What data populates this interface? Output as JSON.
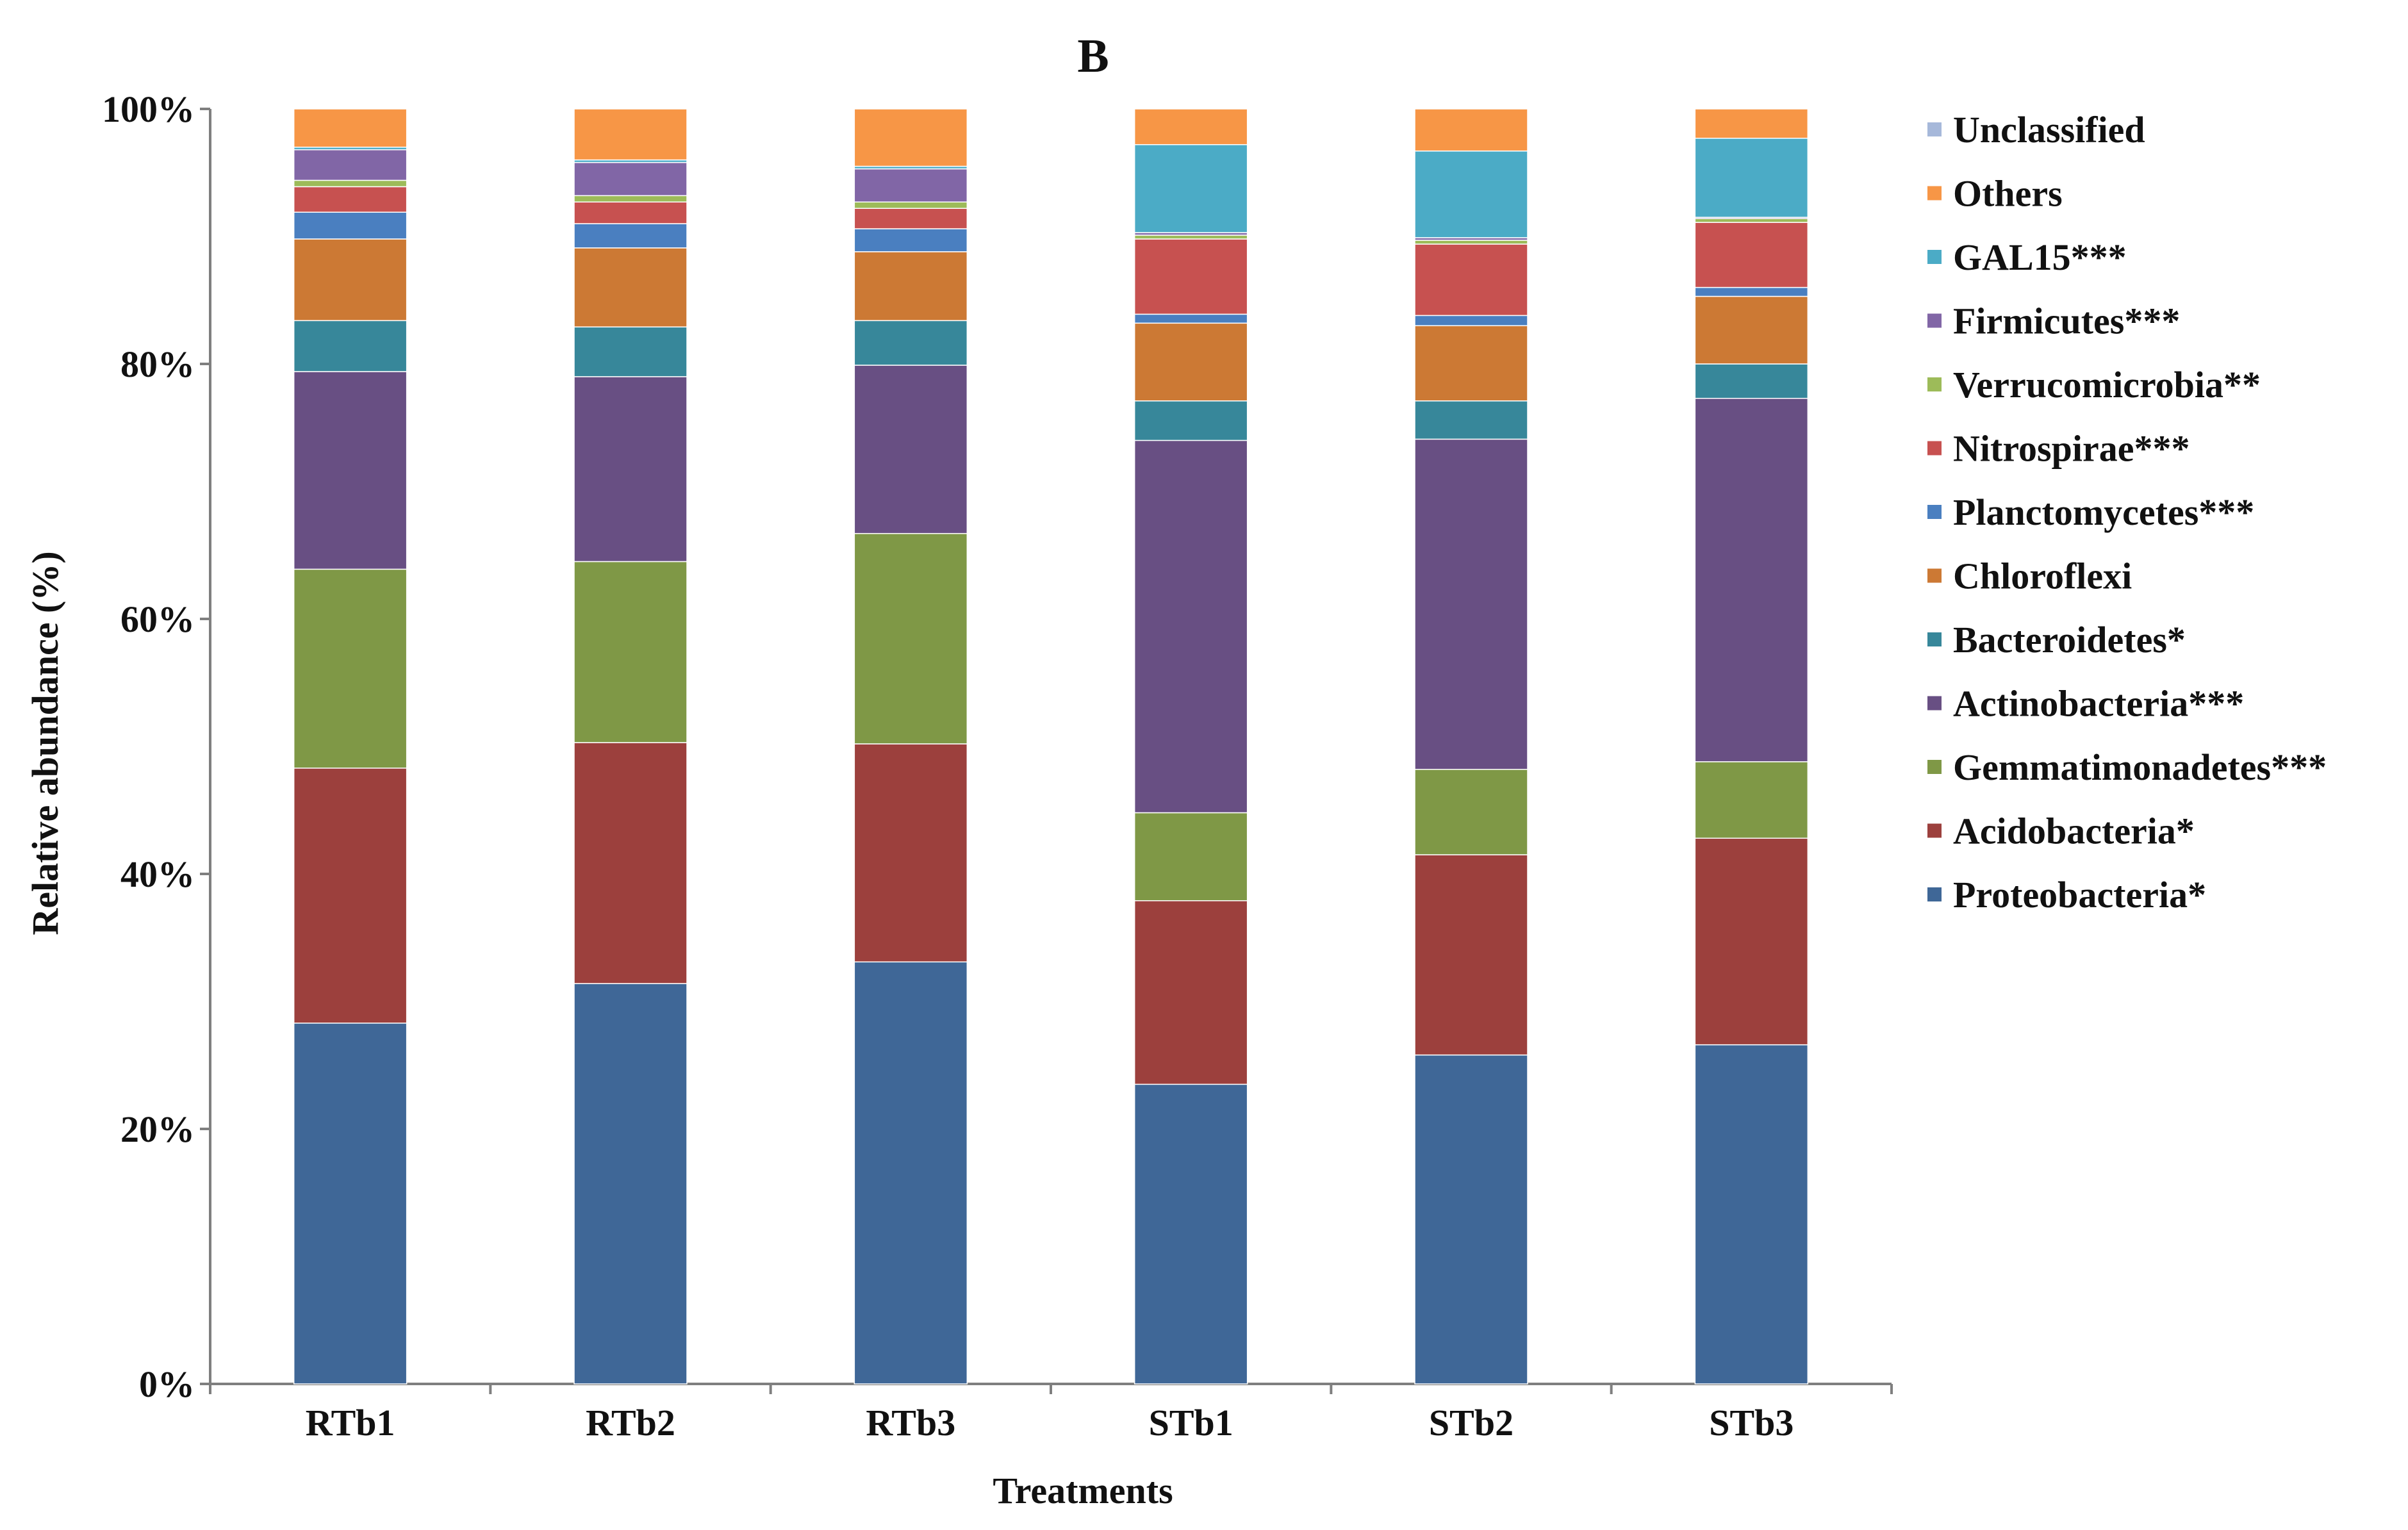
{
  "chart_data": {
    "type": "stacked-bar-percent",
    "title": "B",
    "xlabel": "Treatments",
    "ylabel": "Relative abundance (%)",
    "ylim": [
      0,
      100
    ],
    "yticks": [
      "0%",
      "20%",
      "40%",
      "60%",
      "80%",
      "100%"
    ],
    "categories": [
      "RTb1",
      "RTb2",
      "RTb3",
      "STb1",
      "STb2",
      "STb3"
    ],
    "legend_position": "right",
    "series": [
      {
        "name": "Proteobacteria*",
        "color": "#3f6797",
        "values": [
          28.3,
          31.4,
          33.1,
          23.5,
          25.8,
          26.6
        ]
      },
      {
        "name": "Acidobacteria*",
        "color": "#9c403d",
        "values": [
          20.0,
          18.9,
          17.1,
          14.4,
          15.7,
          16.2
        ]
      },
      {
        "name": "Gemmatimonadetes***",
        "color": "#7f9846",
        "values": [
          15.6,
          14.2,
          16.5,
          6.9,
          6.7,
          6.0
        ]
      },
      {
        "name": "Actinobacteria***",
        "color": "#684f83",
        "values": [
          15.5,
          14.5,
          13.2,
          29.2,
          25.9,
          28.5
        ]
      },
      {
        "name": "Bacteroidetes*",
        "color": "#37879a",
        "values": [
          4.0,
          3.9,
          3.5,
          3.1,
          3.0,
          2.7
        ]
      },
      {
        "name": "Chloroflexi",
        "color": "#cc7934",
        "values": [
          6.4,
          6.2,
          5.4,
          6.1,
          5.9,
          5.3
        ]
      },
      {
        "name": "Planctomycetes***",
        "color": "#4a7fc0",
        "values": [
          2.1,
          1.9,
          1.8,
          0.7,
          0.8,
          0.7
        ]
      },
      {
        "name": "Nitrospirae***",
        "color": "#c75150",
        "values": [
          2.0,
          1.7,
          1.6,
          5.9,
          5.6,
          5.1
        ]
      },
      {
        "name": "Verrucomicrobia**",
        "color": "#9dbb59",
        "values": [
          0.5,
          0.5,
          0.5,
          0.3,
          0.3,
          0.3
        ]
      },
      {
        "name": "Firmicutes***",
        "color": "#8166a6",
        "values": [
          2.4,
          2.6,
          2.6,
          0.2,
          0.2,
          0.1
        ]
      },
      {
        "name": "GAL15***",
        "color": "#4babc6",
        "values": [
          0.2,
          0.2,
          0.2,
          6.9,
          6.8,
          6.2
        ]
      },
      {
        "name": "Others",
        "color": "#f79646",
        "values": [
          3.0,
          4.0,
          4.5,
          2.8,
          3.3,
          2.3
        ]
      },
      {
        "name": "Unclassified",
        "color": "#a6b8da",
        "values": [
          0.0,
          0.0,
          0.0,
          0.0,
          0.0,
          0.0
        ]
      }
    ]
  }
}
